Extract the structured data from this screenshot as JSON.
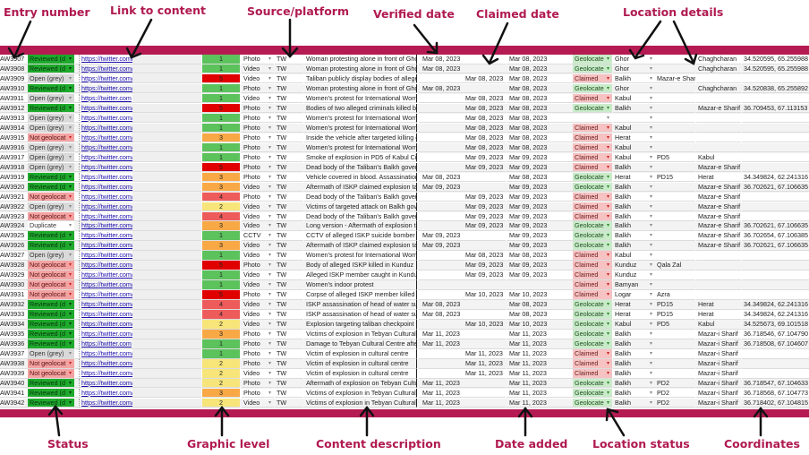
{
  "annotations": {
    "top": [
      "Entry number",
      "Link to content",
      "Source/platform",
      "Verified date",
      "Claimed date",
      "Location details"
    ],
    "bottom": [
      "Status",
      "Graphic level",
      "Content description",
      "Date added",
      "Location status",
      "Coordinates"
    ]
  },
  "colors": {
    "accent_band": "#b51b52",
    "status_reviewed": "#1eaa2c",
    "status_open": "#d9d9d9",
    "status_not_geolocated": "#f4a3a3",
    "level_1": "#5cc25c",
    "level_2": "#f7e57a",
    "level_3": "#f8a946",
    "level_4": "#ee5b5b",
    "level_5": "#e00000",
    "location_geolocated": "#c9ebc9",
    "location_claimed": "#f6c2c2"
  },
  "rows": [
    {
      "id": "AW3907",
      "status": "Reviewed (d",
      "link": "https://twitter.com/",
      "level": "1",
      "type": "Photo",
      "source": "TW",
      "desc": "Woman protesting alone in front of Ghor",
      "verified": "Mar 08, 2023",
      "claimed": "",
      "added": "Mar 08, 2023",
      "loc_status": "Geolocate",
      "province": "Ghor",
      "district": "",
      "city": "Chaghcharan",
      "coords": "34.520595, 65.255988"
    },
    {
      "id": "AW3908",
      "status": "Reviewed (d",
      "link": "https://twitter.com/",
      "level": "1",
      "type": "Video",
      "source": "TW",
      "desc": "Woman protesting alone in front of Ghor",
      "verified": "Mar 08, 2023",
      "claimed": "",
      "added": "Mar 08, 2023",
      "loc_status": "Geolocate",
      "province": "Ghor",
      "district": "",
      "city": "Chaghcharan",
      "coords": "34.520595, 65.255988"
    },
    {
      "id": "AW3909",
      "status": "Open (grey)",
      "link": "https://twitter.com/",
      "level": "5",
      "type": "Video",
      "source": "TW",
      "desc": "Taliban publicly display bodies of alleged",
      "verified": "",
      "claimed": "Mar 08, 2023",
      "added": "Mar 08, 2023",
      "loc_status": "Claimed",
      "province": "Balkh",
      "district": "Mazar-e Shar",
      "city": "",
      "coords": ""
    },
    {
      "id": "AW3910",
      "status": "Reviewed (d",
      "link": "https://twitter.com/",
      "level": "1",
      "type": "Photo",
      "source": "TW",
      "desc": "Woman protesting alone in front of Ghor",
      "verified": "Mar 08, 2023",
      "claimed": "",
      "added": "Mar 08, 2023",
      "loc_status": "Geolocate",
      "province": "Ghor",
      "district": "",
      "city": "Chaghcharan",
      "coords": "34.520838, 65.255892"
    },
    {
      "id": "AW3911",
      "status": "Open (grey)",
      "link": "https://twitter.com",
      "level": "1",
      "type": "Video",
      "source": "TW",
      "desc": "Women's protest for International Wome",
      "verified": "",
      "claimed": "Mar 08, 2023",
      "added": "Mar 08, 2023",
      "loc_status": "Claimed",
      "province": "Kabul",
      "district": "",
      "city": "",
      "coords": ""
    },
    {
      "id": "AW3912",
      "status": "Reviewed (d",
      "link": "https://twitter.com/",
      "level": "5",
      "type": "Photo",
      "source": "TW",
      "desc": "Bodies of two alleged criminals killed by",
      "verified": "",
      "claimed": "Mar 08, 2023",
      "added": "Mar 08, 2023",
      "loc_status": "Geolocate",
      "province": "Balkh",
      "district": "",
      "city": "Mazar-e Sharif",
      "coords": "36.709453, 67.113153"
    },
    {
      "id": "AW3913",
      "status": "Open (grey)",
      "link": "https://twitter.com/",
      "level": "1",
      "type": "Photo",
      "source": "TW",
      "desc": "Women's protest for International Wome",
      "verified": "",
      "claimed": "Mar 08, 2023",
      "added": "Mar 08, 2023",
      "loc_status": "",
      "province": "",
      "district": "",
      "city": "",
      "coords": ""
    },
    {
      "id": "AW3914",
      "status": "Open (grey)",
      "link": "https://twitter.com/",
      "level": "1",
      "type": "Photo",
      "source": "TW",
      "desc": "Women's protest for International Wome",
      "verified": "",
      "claimed": "Mar 08, 2023",
      "added": "Mar 08, 2023",
      "loc_status": "Claimed",
      "province": "Kabul",
      "district": "",
      "city": "",
      "coords": ""
    },
    {
      "id": "AW3915",
      "status": "Not geolocat",
      "link": "https://twitter.com/",
      "level": "3",
      "type": "Photo",
      "source": "TW",
      "desc": "Inside the vehicle after targeted killing of",
      "verified": "",
      "claimed": "Mar 08, 2023",
      "added": "Mar 08, 2023",
      "loc_status": "Claimed",
      "province": "Herat",
      "district": "",
      "city": "",
      "coords": ""
    },
    {
      "id": "AW3916",
      "status": "Open (grey)",
      "link": "https://twitter.com/",
      "level": "1",
      "type": "Photo",
      "source": "TW",
      "desc": "Women's protest for International Wome",
      "verified": "",
      "claimed": "Mar 08, 2023",
      "added": "Mar 08, 2023",
      "loc_status": "Claimed",
      "province": "Kabul",
      "district": "",
      "city": "",
      "coords": ""
    },
    {
      "id": "AW3917",
      "status": "Open (grey)",
      "link": "https://twitter.com/",
      "level": "1",
      "type": "Photo",
      "source": "TW",
      "desc": "Smoke of explosion in PD5 of Kabul City",
      "verified": "",
      "claimed": "Mar 09, 2023",
      "added": "Mar 09, 2023",
      "loc_status": "Claimed",
      "province": "Kabul",
      "district": "PD5",
      "city": "Kabul",
      "coords": ""
    },
    {
      "id": "AW3918",
      "status": "Open (grey)",
      "link": "https://twitter.com/",
      "level": "5",
      "type": "Photo",
      "source": "TW",
      "desc": "Dead body of the Taliban's Balkh govern",
      "verified": "",
      "claimed": "Mar 09, 2023",
      "added": "Mar 09, 2023",
      "loc_status": "Claimed",
      "province": "Balkh",
      "district": "",
      "city": "Mazar-e Sharif",
      "coords": ""
    },
    {
      "id": "AW3919",
      "status": "Reviewed (d",
      "link": "https://twitter.com/",
      "level": "3",
      "type": "Photo",
      "source": "TW",
      "desc": "Vehicle covered in blood. Assassination",
      "verified": "Mar 08, 2023",
      "claimed": "",
      "added": "Mar 08, 2023",
      "loc_status": "Geolocate",
      "province": "Herat",
      "district": "PD15",
      "city": "Herat",
      "coords": "34.349824, 62.241316"
    },
    {
      "id": "AW3920",
      "status": "Reviewed (d",
      "link": "https://twitter.com/",
      "level": "3",
      "type": "Video",
      "source": "TW",
      "desc": "Aftermath of ISKP claimed explosion targ",
      "verified": "Mar 09, 2023",
      "claimed": "",
      "added": "Mar 09, 2023",
      "loc_status": "Geolocate",
      "province": "Balkh",
      "district": "",
      "city": "Mazar-e Sharif",
      "coords": "36.702621, 67.106635"
    },
    {
      "id": "AW3921",
      "status": "Not geolocat",
      "link": "https://twitter.com/",
      "level": "4",
      "type": "Photo",
      "source": "TW",
      "desc": "Dead body of the Taliban's Balkh govern",
      "verified": "",
      "claimed": "Mar 09, 2023",
      "added": "Mar 09, 2023",
      "loc_status": "Claimed",
      "province": "Balkh",
      "district": "",
      "city": "Mazar-e Sharif",
      "coords": ""
    },
    {
      "id": "AW3922",
      "status": "Open (grey)",
      "link": "https://twitter.com/",
      "level": "2",
      "type": "Video",
      "source": "TW",
      "desc": "Victims of targeted attack on Balkh gove",
      "verified": "",
      "claimed": "Mar 09, 2023",
      "added": "Mar 09, 2023",
      "loc_status": "Claimed",
      "province": "Balkh",
      "district": "",
      "city": "Mazar-e Sharif",
      "coords": ""
    },
    {
      "id": "AW3923",
      "status": "Not geolocat",
      "link": "https://twitter.com/",
      "level": "4",
      "type": "Video",
      "source": "TW",
      "desc": "Dead body of the Taliban's Balkh govern",
      "verified": "",
      "claimed": "Mar 09, 2023",
      "added": "Mar 09, 2023",
      "loc_status": "Claimed",
      "province": "Balkh",
      "district": "",
      "city": "Mazar-e Sharif",
      "coords": ""
    },
    {
      "id": "AW3924",
      "status": "Duplicate",
      "link": "https://twitter.com/",
      "level": "3",
      "type": "Video",
      "source": "TW",
      "desc": "Long version - Aftermath of explosion tar",
      "verified": "",
      "claimed": "Mar 09, 2023",
      "added": "Mar 09, 2023",
      "loc_status": "Geolocate",
      "province": "Balkh",
      "district": "",
      "city": "Mazar-e Sharif",
      "coords": "36.702621, 67.106635"
    },
    {
      "id": "AW3925",
      "status": "Reviewed (d",
      "link": "https://twitter.com/",
      "level": "1",
      "type": "CCTV",
      "source": "TW",
      "desc": "CCTV of alleged ISKP suicide bomber e",
      "verified": "Mar 09, 2023",
      "claimed": "",
      "added": "Mar 09, 2023",
      "loc_status": "Geolocate",
      "province": "Balkh",
      "district": "",
      "city": "Mazar-e Sharif",
      "coords": "36.702654, 67.106385"
    },
    {
      "id": "AW3926",
      "status": "Reviewed (d",
      "link": "https://twitter.com/",
      "level": "3",
      "type": "Video",
      "source": "TW",
      "desc": "Aftermath of ISKP claimed explosion tar",
      "verified": "Mar 09, 2023",
      "claimed": "",
      "added": "Mar 09, 2023",
      "loc_status": "Geolocate",
      "province": "Balkh",
      "district": "",
      "city": "Mazar-e Sharif",
      "coords": "36.702621, 67.106635"
    },
    {
      "id": "AW3927",
      "status": "Open (grey)",
      "link": "https://twitter.com/",
      "level": "1",
      "type": "Video",
      "source": "TW",
      "desc": "Women's protest for International Wome",
      "verified": "",
      "claimed": "Mar 08, 2023",
      "added": "Mar 08, 2023",
      "loc_status": "Claimed",
      "province": "Kabul",
      "district": "",
      "city": "",
      "coords": ""
    },
    {
      "id": "AW3928",
      "status": "Not geolocat",
      "link": "https://twitter.com/",
      "level": "5",
      "type": "Photo",
      "source": "TW",
      "desc": "Body of alleged ISKP killed in Kunduz",
      "verified": "",
      "claimed": "Mar 09, 2023",
      "added": "Mar 09, 2023",
      "loc_status": "Claimed",
      "province": "Kunduz",
      "district": "Qala Zal",
      "city": "",
      "coords": ""
    },
    {
      "id": "AW3929",
      "status": "Not geolocat",
      "link": "https://twitter.com/",
      "level": "1",
      "type": "Video",
      "source": "TW",
      "desc": "Alleged ISKP member caught in Kunduz",
      "verified": "",
      "claimed": "Mar 09, 2023",
      "added": "Mar 09, 2023",
      "loc_status": "Claimed",
      "province": "Kunduz",
      "district": "",
      "city": "",
      "coords": ""
    },
    {
      "id": "AW3930",
      "status": "Not geolocat",
      "link": "https://twitter.com/",
      "level": "1",
      "type": "Video",
      "source": "TW",
      "desc": "Women's indoor protest",
      "verified": "",
      "claimed": "",
      "added": "",
      "loc_status": "Claimed",
      "province": "Bamyan",
      "district": "",
      "city": "",
      "coords": ""
    },
    {
      "id": "AW3931",
      "status": "Not geolocat",
      "link": "https://twitter.com/",
      "level": "5",
      "type": "Photo",
      "source": "TW",
      "desc": "Corpse of alleged ISKP member killed in",
      "verified": "",
      "claimed": "Mar 10, 2023",
      "added": "Mar 10, 2023",
      "loc_status": "Claimed",
      "province": "Logar",
      "district": "Azra",
      "city": "",
      "coords": ""
    },
    {
      "id": "AW3932",
      "status": "Reviewed (d",
      "link": "https://twitter.com/",
      "level": "4",
      "type": "Video",
      "source": "TW",
      "desc": "ISKP assassination of head of water sup",
      "verified": "Mar 08, 2023",
      "claimed": "",
      "added": "Mar 08, 2023",
      "loc_status": "Geolocate",
      "province": "Herat",
      "district": "PD15",
      "city": "Herat",
      "coords": "34.349824, 62.241316"
    },
    {
      "id": "AW3933",
      "status": "Reviewed (d",
      "link": "https://twitter.com/",
      "level": "4",
      "type": "Video",
      "source": "TW",
      "desc": "ISKP assassination of head of water sup",
      "verified": "Mar 08, 2023",
      "claimed": "",
      "added": "Mar 08, 2023",
      "loc_status": "Geolocate",
      "province": "Herat",
      "district": "PD15",
      "city": "Herat",
      "coords": "34.349824, 62.241316"
    },
    {
      "id": "AW3934",
      "status": "Reviewed (d",
      "link": "https://twitter.com/",
      "level": "2",
      "type": "Video",
      "source": "TW",
      "desc": "Explosion targeting taliban checkpoint cl",
      "verified": "",
      "claimed": "Mar 10, 2023",
      "added": "Mar 10, 2023",
      "loc_status": "Geolocate",
      "province": "Kabul",
      "district": "PD5",
      "city": "Kabul",
      "coords": "34.525673, 69.101518"
    },
    {
      "id": "AW3935",
      "status": "Reviewed (d",
      "link": "https://twitter.com/",
      "level": "3",
      "type": "Photo",
      "source": "TW",
      "desc": "Victims of explosion in Tebyan Cultural C",
      "verified": "Mar 11, 2023",
      "claimed": "",
      "added": "Mar 11, 2023",
      "loc_status": "Geolocate",
      "province": "Balkh",
      "district": "",
      "city": "Mazar-i Sharif",
      "coords": "36.718546, 67.104790"
    },
    {
      "id": "AW3936",
      "status": "Reviewed (d",
      "link": "https://twitter.com",
      "level": "1",
      "type": "Photo",
      "source": "TW",
      "desc": "Damage to Tebyan Cultural Centre after",
      "verified": "Mar 11, 2023",
      "claimed": "",
      "added": "Mar 11, 2023",
      "loc_status": "Geolocate",
      "province": "Balkh",
      "district": "",
      "city": "Mazar-i Sharif",
      "coords": "36.718508, 67.104607"
    },
    {
      "id": "AW3937",
      "status": "Open (grey)",
      "link": "https://twitter.com/",
      "level": "1",
      "type": "Photo",
      "source": "TW",
      "desc": "Victim of explosion in cultural centre",
      "verified": "",
      "claimed": "Mar 11, 2023",
      "added": "Mar 11, 2023",
      "loc_status": "Claimed",
      "province": "Balkh",
      "district": "",
      "city": "Mazar-i Sharif",
      "coords": ""
    },
    {
      "id": "AW3938",
      "status": "Not geolocat",
      "link": "https://twitter.com/",
      "level": "2",
      "type": "Photo",
      "source": "TW",
      "desc": "Victim of explosion in cultural centre",
      "verified": "",
      "claimed": "Mar 11, 2023",
      "added": "Mar 11, 2023",
      "loc_status": "Claimed",
      "province": "Balkh",
      "district": "",
      "city": "Mazar-i Sharif",
      "coords": ""
    },
    {
      "id": "AW3939",
      "status": "Not geolocat",
      "link": "https://twitter.com/",
      "level": "2",
      "type": "Video",
      "source": "TW",
      "desc": "Victim of explosion in cultural centre",
      "verified": "",
      "claimed": "Mar 11, 2023",
      "added": "Mar 11, 2023",
      "loc_status": "Claimed",
      "province": "Balkh",
      "district": "",
      "city": "Mazar-i Sharif",
      "coords": ""
    },
    {
      "id": "AW3940",
      "status": "Reviewed (d",
      "link": "https://twitter.com/",
      "level": "2",
      "type": "Photo",
      "source": "TW",
      "desc": "Aftermath of explosion on Tebyan Cultur",
      "verified": "Mar 11, 2023",
      "claimed": "",
      "added": "Mar 11, 2023",
      "loc_status": "Geolocate",
      "province": "Balkh",
      "district": "PD2",
      "city": "Mazar-i Sharif",
      "coords": "36.718547, 67.104633"
    },
    {
      "id": "AW3941",
      "status": "Reviewed (d",
      "link": "https://twitter.com/",
      "level": "3",
      "type": "Photo",
      "source": "TW",
      "desc": "Victims of explosion in Tebyan Cultural C",
      "verified": "Mar 11, 2023",
      "claimed": "",
      "added": "Mar 11, 2023",
      "loc_status": "Geolocate",
      "province": "Balkh",
      "district": "PD2",
      "city": "Mazar-i Sharif",
      "coords": "36.718568, 67.104773"
    },
    {
      "id": "AW3942",
      "status": "Reviewed (d",
      "link": "https://twitter.com/",
      "level": "2",
      "type": "Video",
      "source": "TW",
      "desc": "Victims of explosion in Tebyan Cultural C",
      "verified": "Mar 11, 2023",
      "claimed": "",
      "added": "Mar 11, 2023",
      "loc_status": "Geolocate",
      "province": "Balkh",
      "district": "PD2",
      "city": "Mazar-i Sharif",
      "coords": "36.718402, 67.104815"
    }
  ]
}
